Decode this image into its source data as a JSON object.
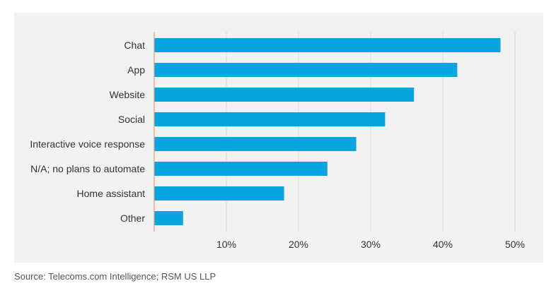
{
  "chart_data": {
    "type": "bar",
    "orientation": "horizontal",
    "categories": [
      "Chat",
      "App",
      "Website",
      "Social",
      "Interactive voice response",
      "N/A; no plans to automate",
      "Home assistant",
      "Other"
    ],
    "values": [
      48,
      42,
      36,
      32,
      28,
      24,
      18,
      4
    ],
    "xticks": [
      "10%",
      "20%",
      "30%",
      "40%",
      "50%"
    ],
    "xlim": [
      0,
      50
    ],
    "grid": true,
    "title": "",
    "xlabel": "",
    "ylabel": ""
  },
  "colors": {
    "bar": "#08a5e0",
    "axis": "#e8a070",
    "grid": "#d9d9d9",
    "panel": "#f2f2f2"
  },
  "footer": {
    "source": "Source: Telecoms.com Intelligence; RSM US LLP"
  }
}
